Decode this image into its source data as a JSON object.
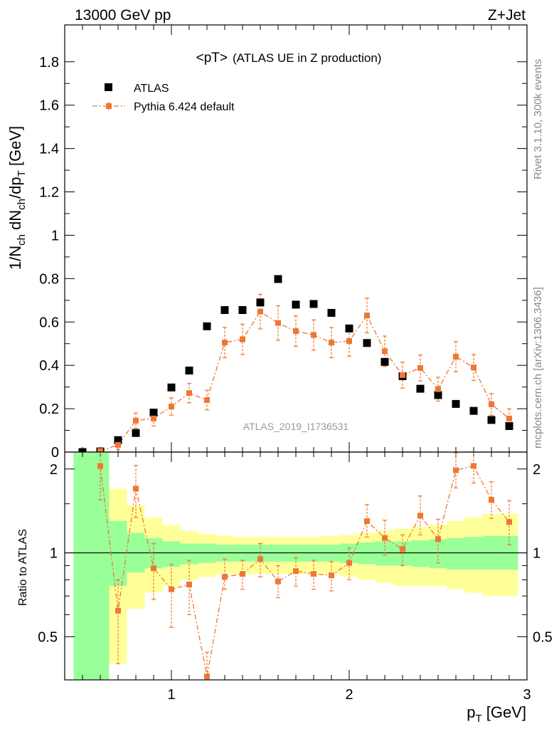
{
  "header": {
    "energy_label": "13000 GeV pp",
    "process_label": "Z+Jet"
  },
  "side_text": {
    "rivet": "Rivet 3.1.10,  300k events",
    "mcplots": "mcplots.cern.ch [arXiv:1306.3436]"
  },
  "watermark": "ATLAS_2019_I1736531",
  "chart_data": [
    {
      "type": "scatter",
      "title": "<pT>",
      "subtitle": "(ATLAS UE in Z production)",
      "xlabel": "p_T [GeV]",
      "ylabel": "1/N_ch dN_ch/dp_T [GeV]",
      "xlim": [
        0.4,
        3.0
      ],
      "ylim": [
        0,
        1.97
      ],
      "x_ticks": [
        1,
        2,
        3
      ],
      "y_ticks": [
        0,
        0.2,
        0.4,
        0.6,
        0.8,
        1,
        1.2,
        1.4,
        1.6,
        1.8
      ],
      "y_tick_labels": [
        "0",
        "0.2",
        "0.4",
        "0.6",
        "0.8",
        "1",
        "1.2",
        "1.4",
        "1.6",
        "1.8"
      ],
      "legend_position": "top-left",
      "series": [
        {
          "name": "ATLAS",
          "marker": "square",
          "color": "#000000",
          "x": [
            0.5,
            0.6,
            0.7,
            0.8,
            0.9,
            1.0,
            1.1,
            1.2,
            1.3,
            1.4,
            1.5,
            1.6,
            1.7,
            1.8,
            1.9,
            2.0,
            2.1,
            2.2,
            2.3,
            2.4,
            2.5,
            2.6,
            2.7,
            2.8,
            2.9
          ],
          "y": [
            0.0,
            0.003,
            0.055,
            0.088,
            0.182,
            0.298,
            0.376,
            0.58,
            0.655,
            0.655,
            0.69,
            0.798,
            0.68,
            0.683,
            0.642,
            0.57,
            0.503,
            0.416,
            0.35,
            0.292,
            0.263,
            0.222,
            0.19,
            0.148,
            0.12
          ]
        },
        {
          "name": "Pythia 6.424 default",
          "marker": "square-dashdot",
          "color": "#ee7733",
          "x": [
            0.6,
            0.7,
            0.8,
            0.9,
            1.0,
            1.1,
            1.2,
            1.3,
            1.4,
            1.5,
            1.6,
            1.7,
            1.8,
            1.9,
            2.0,
            2.1,
            2.2,
            2.3,
            2.4,
            2.5,
            2.6,
            2.7,
            2.8,
            2.9
          ],
          "y": [
            0.005,
            0.033,
            0.145,
            0.155,
            0.21,
            0.272,
            0.24,
            0.505,
            0.52,
            0.648,
            0.595,
            0.558,
            0.54,
            0.505,
            0.512,
            0.63,
            0.465,
            0.355,
            0.388,
            0.29,
            0.44,
            0.39,
            0.22,
            0.155
          ],
          "err": [
            0.005,
            0.02,
            0.035,
            0.035,
            0.04,
            0.045,
            0.045,
            0.07,
            0.07,
            0.08,
            0.08,
            0.07,
            0.07,
            0.07,
            0.07,
            0.08,
            0.07,
            0.06,
            0.06,
            0.055,
            0.07,
            0.06,
            0.05,
            0.045
          ]
        }
      ]
    },
    {
      "type": "scatter",
      "ylabel": "Ratio to ATLAS",
      "xlim": [
        0.4,
        3.0
      ],
      "ylim": [
        0.35,
        2.3
      ],
      "log_y": true,
      "y_ticks": [
        0.5,
        1,
        2
      ],
      "y_tick_labels": [
        "0.5",
        "1",
        "2"
      ],
      "x_ticks": [
        1,
        2,
        3
      ],
      "x_tick_labels": [
        "1",
        "2",
        "3"
      ],
      "bands": {
        "bin_edges": [
          0.45,
          0.55,
          0.65,
          0.75,
          0.85,
          0.95,
          1.05,
          1.15,
          1.25,
          1.35,
          1.45,
          1.55,
          1.65,
          1.75,
          1.85,
          1.95,
          2.05,
          2.15,
          2.25,
          2.35,
          2.45,
          2.55,
          2.65,
          2.75,
          2.95
        ],
        "stat": {
          "name": "stat",
          "color": "#99ff99",
          "lo": [
            0.35,
            0.35,
            0.76,
            0.85,
            0.88,
            0.89,
            0.91,
            0.92,
            0.93,
            0.93,
            0.93,
            0.93,
            0.93,
            0.93,
            0.93,
            0.92,
            0.91,
            0.9,
            0.9,
            0.89,
            0.88,
            0.87,
            0.87,
            0.87
          ],
          "hi": [
            2.3,
            2.3,
            1.3,
            1.18,
            1.13,
            1.1,
            1.08,
            1.08,
            1.07,
            1.07,
            1.07,
            1.07,
            1.07,
            1.07,
            1.07,
            1.08,
            1.09,
            1.1,
            1.1,
            1.11,
            1.12,
            1.13,
            1.14,
            1.15
          ]
        },
        "syst": {
          "name": "syst",
          "color": "#ffff99",
          "lo": [
            0.35,
            0.35,
            0.4,
            0.63,
            0.72,
            0.76,
            0.8,
            0.82,
            0.84,
            0.84,
            0.84,
            0.84,
            0.84,
            0.84,
            0.84,
            0.82,
            0.8,
            0.78,
            0.76,
            0.76,
            0.76,
            0.74,
            0.72,
            0.7
          ],
          "hi": [
            2.3,
            2.3,
            1.7,
            1.48,
            1.34,
            1.26,
            1.2,
            1.17,
            1.15,
            1.14,
            1.14,
            1.14,
            1.14,
            1.14,
            1.15,
            1.16,
            1.18,
            1.2,
            1.22,
            1.24,
            1.26,
            1.3,
            1.34,
            1.38
          ]
        }
      },
      "reference_line": 1,
      "series": [
        {
          "name": "Pythia 6.424 default",
          "color": "#ee7733",
          "x": [
            0.6,
            0.7,
            0.8,
            0.9,
            1.0,
            1.1,
            1.2,
            1.3,
            1.4,
            1.5,
            1.6,
            1.7,
            1.8,
            1.9,
            2.0,
            2.1,
            2.2,
            2.3,
            2.4,
            2.5,
            2.6,
            2.7,
            2.8,
            2.9
          ],
          "y": [
            2.05,
            0.62,
            1.7,
            0.88,
            0.74,
            0.77,
            0.36,
            0.82,
            0.84,
            0.95,
            0.79,
            0.86,
            0.84,
            0.83,
            0.92,
            1.3,
            1.13,
            1.03,
            1.36,
            1.12,
            1.98,
            2.05,
            1.55,
            1.29
          ],
          "err_lo": [
            0.5,
            0.22,
            0.36,
            0.2,
            0.2,
            0.17,
            0.01,
            0.08,
            0.1,
            0.13,
            0.1,
            0.1,
            0.1,
            0.1,
            0.12,
            0.16,
            0.15,
            0.13,
            0.2,
            0.2,
            0.27,
            0.27,
            0.22,
            0.22
          ],
          "err_hi": [
            0.5,
            0.18,
            0.36,
            0.2,
            0.17,
            0.17,
            0.08,
            0.13,
            0.1,
            0.13,
            0.11,
            0.1,
            0.1,
            0.1,
            0.12,
            0.19,
            0.18,
            0.13,
            0.24,
            0.2,
            0.3,
            0.27,
            0.25,
            0.25
          ]
        }
      ]
    }
  ]
}
